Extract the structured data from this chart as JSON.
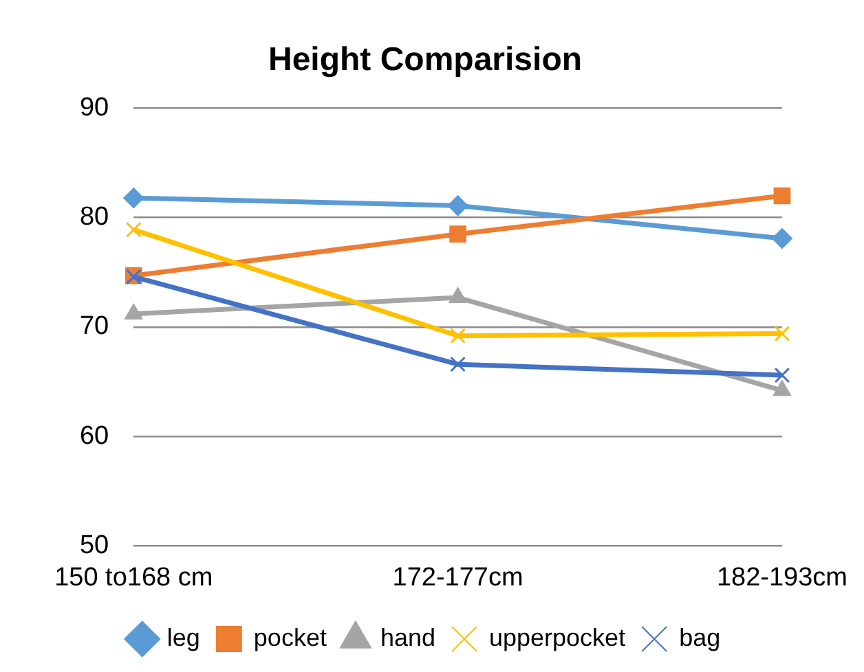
{
  "chart_data": {
    "type": "line",
    "title": "Height Comparision",
    "categories": [
      "150 to168 cm",
      "172-177cm",
      "182-193cm"
    ],
    "series": [
      {
        "name": "leg",
        "color": "#5b9bd5",
        "marker": "diamond",
        "values": [
          81.8,
          81.1,
          78.1
        ]
      },
      {
        "name": "pocket",
        "color": "#ed7d31",
        "marker": "square",
        "values": [
          74.7,
          78.5,
          82.0
        ]
      },
      {
        "name": "hand",
        "color": "#a5a5a5",
        "marker": "triangle",
        "values": [
          71.2,
          72.7,
          64.2
        ]
      },
      {
        "name": "upperpocket",
        "color": "#ffc000",
        "marker": "cross",
        "values": [
          78.9,
          69.2,
          69.4
        ]
      },
      {
        "name": "bag",
        "color": "#4472c4",
        "marker": "cross",
        "values": [
          74.6,
          66.6,
          65.6
        ]
      }
    ],
    "ylim": [
      50,
      90
    ],
    "yticks": [
      50,
      60,
      70,
      80,
      90
    ],
    "grid": "y",
    "legend": "bottom",
    "line_style": "solid"
  }
}
